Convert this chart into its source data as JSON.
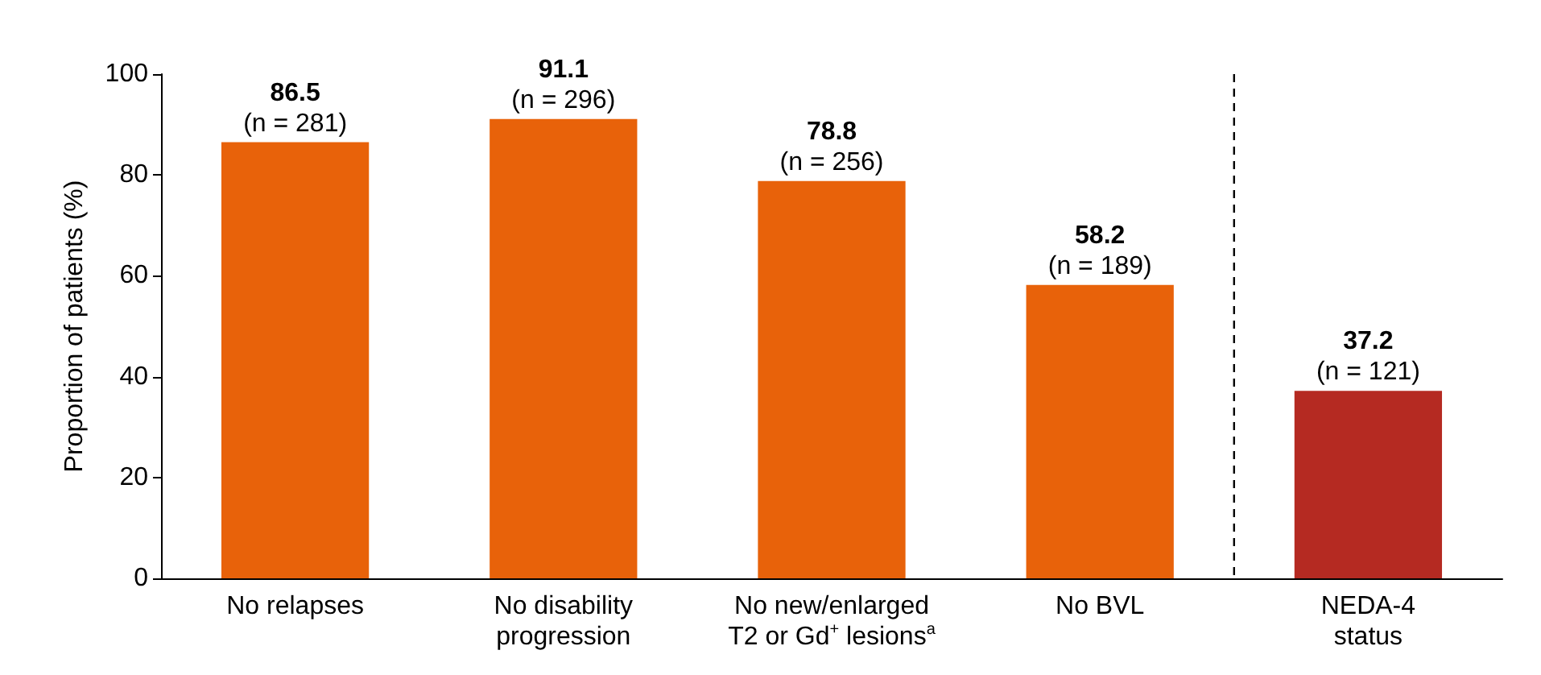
{
  "chart_data": {
    "type": "bar",
    "ylabel": "Proportion of patients (%)",
    "categories": [
      "No relapses",
      "No disability\nprogression",
      "No new/enlarged\nT2 or Gd$^{+}$ lesions$^{a}$",
      "No BVL",
      "NEDA-4\nstatus"
    ],
    "values": [
      86.5,
      91.1,
      78.8,
      58.2,
      37.2
    ],
    "colors": [
      "#e8620a",
      "#e8620a",
      "#e8620a",
      "#e8620a",
      "#b52a22"
    ],
    "value_labels": [
      "86.5\n(n = 281)",
      "91.1\n(n = 296)",
      "78.8\n(n = 256)",
      "58.2\n(n = 189)",
      "37.2\n(n = 121)"
    ],
    "ylim": [
      0,
      100
    ],
    "yticks": [
      0,
      20,
      40,
      60,
      80,
      100
    ]
  }
}
